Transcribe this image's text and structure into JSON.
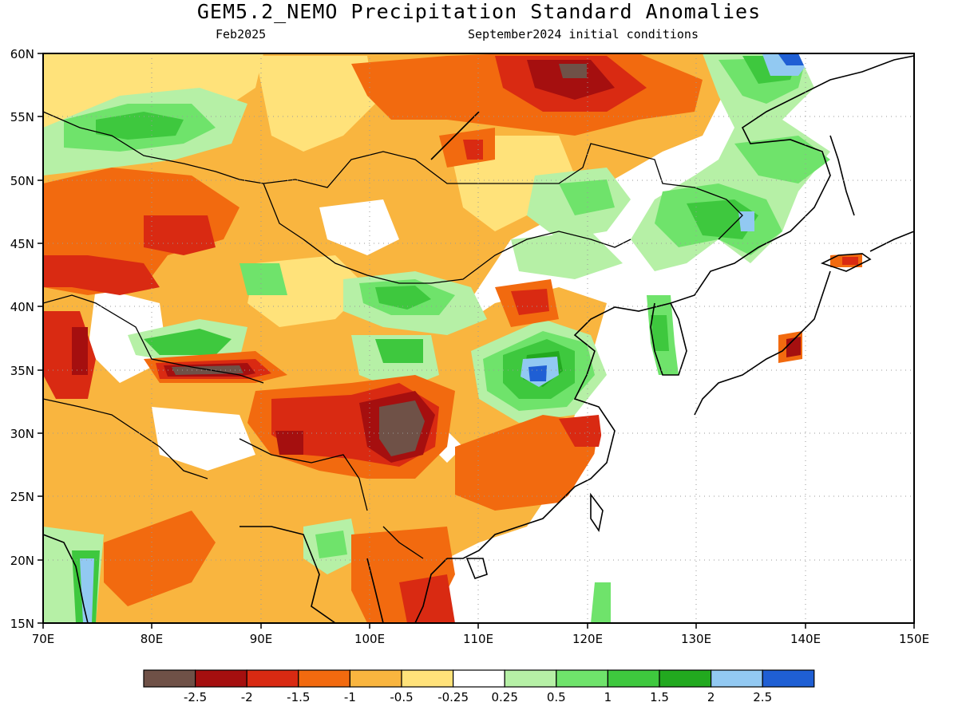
{
  "title": "GEM5.2_NEMO Precipitation Standard Anomalies",
  "valid_month": "Feb2025",
  "initial_conditions": "September2024 initial conditions",
  "lon_labels": [
    "70E",
    "80E",
    "90E",
    "100E",
    "110E",
    "120E",
    "130E",
    "140E",
    "150E"
  ],
  "lat_labels": [
    "60N",
    "55N",
    "50N",
    "45N",
    "40N",
    "35N",
    "30N",
    "25N",
    "20N",
    "15N"
  ],
  "legend": {
    "colors": [
      "#6f5147",
      "#a50f0f",
      "#d92a12",
      "#f26a0f",
      "#f9b53f",
      "#ffe27a",
      "#ffffff",
      "#b6f0a6",
      "#6fe36b",
      "#3ec83e",
      "#22a91f",
      "#92c9f2",
      "#1f5fd4"
    ],
    "labels": [
      "-2.5",
      "-2",
      "-1.5",
      "-1",
      "-0.5",
      "-0.25",
      "0.25",
      "0.5",
      "1",
      "1.5",
      "2",
      "2.5"
    ]
  },
  "colors": {
    "land_bg": "#f9b53f",
    "ocean": "#ffffff",
    "coast": "#000000",
    "grid": "#9a9a9a"
  }
}
